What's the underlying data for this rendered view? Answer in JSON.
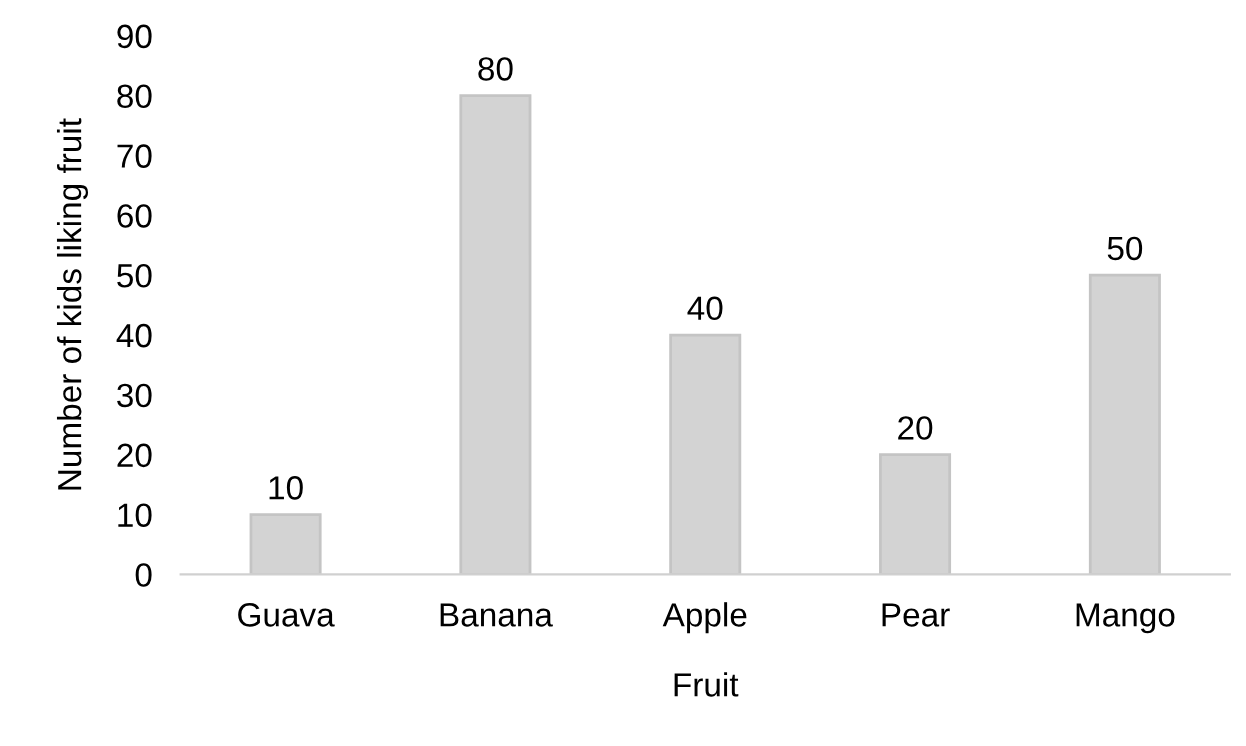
{
  "chart_data": {
    "type": "bar",
    "xlabel": "Fruit",
    "ylabel": "Number of kids liking fruit",
    "categories": [
      "Guava",
      "Banana",
      "Apple",
      "Pear",
      "Mango"
    ],
    "values": [
      10,
      80,
      40,
      20,
      50
    ],
    "color": "#d3d3d3",
    "ylim": [
      0,
      90
    ],
    "yticks": [
      0,
      10,
      20,
      30,
      40,
      50,
      60,
      70,
      80,
      90
    ],
    "grid": false,
    "data_labels": true
  }
}
